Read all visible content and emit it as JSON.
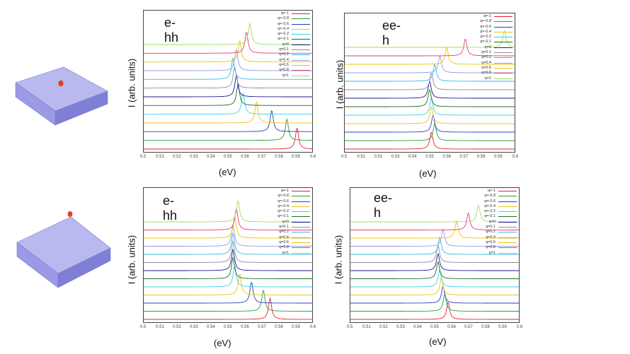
{
  "colors": {
    "series": [
      "#e0232b",
      "#2a9d3a",
      "#2f3cbb",
      "#ecc21a",
      "#36d4e6",
      "#1f6b2a",
      "#1b1b8f",
      "#8c8ca0",
      "#35b7e6",
      "#9a9ad8",
      "#f0c200",
      "#e23c7a",
      "#9be05e"
    ],
    "slab_top": "#b5b5ee",
    "slab_side": "#8686d8",
    "dot": "#e0421f"
  },
  "charts": [
    {
      "title": "e-hh",
      "ylabel": "I (arb. units)",
      "xlabel": "(eV)"
    },
    {
      "title": "ee-h",
      "ylabel": "I (arb. units)",
      "xlabel": "(eV)"
    },
    {
      "title": "e-hh",
      "ylabel": "I (arb. units)",
      "xlabel": "(eV)"
    },
    {
      "title": "ee-h",
      "ylabel": "I (arb. units)",
      "xlabel": "(eV)"
    }
  ],
  "chart_data": [
    {
      "type": "line",
      "title": "e-hh",
      "xlabel": "(eV)",
      "ylabel": "I (arb. units)",
      "xlim": [
        0.5,
        0.6
      ],
      "xticks": [
        "0.5",
        "0.51",
        "0.52",
        "0.53",
        "0.54",
        "0.55",
        "0.56",
        "0.57",
        "0.58",
        "0.59",
        "0.6"
      ],
      "legend": "top-right",
      "series": [
        {
          "name": "q=-1",
          "peak": 0.591
        },
        {
          "name": "q=-0.8",
          "peak": 0.585
        },
        {
          "name": "q=-0.6",
          "peak": 0.576
        },
        {
          "name": "q=-0.4",
          "peak": 0.567
        },
        {
          "name": "q=-0.2",
          "peak": 0.559
        },
        {
          "name": "q=-0.1",
          "peak": 0.556
        },
        {
          "name": "q=0",
          "peak": 0.555
        },
        {
          "name": "q=0.1",
          "peak": 0.554
        },
        {
          "name": "q=0.2",
          "peak": 0.553
        },
        {
          "name": "q=0.4",
          "peak": 0.555
        },
        {
          "name": "q=0.6",
          "peak": 0.557
        },
        {
          "name": "q=0.8",
          "peak": 0.561
        },
        {
          "name": "q=1",
          "peak": 0.563
        }
      ]
    },
    {
      "type": "line",
      "title": "ee-h",
      "xlabel": "(eV)",
      "ylabel": "I (arb. units)",
      "xlim": [
        0.5,
        0.6
      ],
      "xticks": [
        "0.5",
        "0.51",
        "0.52",
        "0.53",
        "0.54",
        "0.55",
        "0.56",
        "0.57",
        "0.58",
        "0.59",
        "0.6"
      ],
      "legend": "top-right",
      "series": [
        {
          "name": "q=-1",
          "peak": 0.551
        },
        {
          "name": "q=-0.8",
          "peak": 0.553
        },
        {
          "name": "q=-0.6",
          "peak": 0.552
        },
        {
          "name": "q=-0.4",
          "peak": 0.551
        },
        {
          "name": "q=-0.2",
          "peak": 0.551
        },
        {
          "name": "q=-0.1",
          "peak": 0.55
        },
        {
          "name": "q=0",
          "peak": 0.55
        },
        {
          "name": "q=0.1",
          "peak": 0.551
        },
        {
          "name": "q=0.2",
          "peak": 0.553
        },
        {
          "name": "q=0.4",
          "peak": 0.556
        },
        {
          "name": "q=0.6",
          "peak": 0.56
        },
        {
          "name": "q=0.8",
          "peak": 0.571
        },
        {
          "name": "q=1",
          "peak": 0.594
        }
      ]
    },
    {
      "type": "line",
      "title": "e-hh",
      "xlabel": "(eV)",
      "ylabel": "I (arb. units)",
      "xlim": [
        0.5,
        0.6
      ],
      "xticks": [
        "0.5",
        "0.51",
        "0.52",
        "0.53",
        "0.54",
        "0.55",
        "0.56",
        "0.57",
        "0.58",
        "0.59",
        "0.6"
      ],
      "legend": "top-right",
      "series": [
        {
          "name": "q=-1",
          "peak": 0.575
        },
        {
          "name": "q=-0.8",
          "peak": 0.571
        },
        {
          "name": "q=-0.6",
          "peak": 0.564
        },
        {
          "name": "q=-0.4",
          "peak": 0.557
        },
        {
          "name": "q=-0.2",
          "peak": 0.554
        },
        {
          "name": "q=-0.1",
          "peak": 0.553
        },
        {
          "name": "q=0",
          "peak": 0.553
        },
        {
          "name": "q=0.1",
          "peak": 0.553
        },
        {
          "name": "q=0.2",
          "peak": 0.553
        },
        {
          "name": "q=0.4",
          "peak": 0.553
        },
        {
          "name": "q=0.6",
          "peak": 0.554
        },
        {
          "name": "q=0.8",
          "peak": 0.555
        },
        {
          "name": "q=1",
          "peak": 0.556
        }
      ]
    },
    {
      "type": "line",
      "title": "ee-h",
      "xlabel": "(eV)",
      "ylabel": "I (arb. units)",
      "xlim": [
        0.5,
        0.6
      ],
      "xticks": [
        "0.5",
        "0.51",
        "0.52",
        "0.53",
        "0.54",
        "0.55",
        "0.56",
        "0.57",
        "0.58",
        "0.59",
        "0.6"
      ],
      "legend": "top-right",
      "series": [
        {
          "name": "q=-1",
          "peak": 0.558
        },
        {
          "name": "q=-0.8",
          "peak": 0.556
        },
        {
          "name": "q=-0.6",
          "peak": 0.555
        },
        {
          "name": "q=-0.4",
          "peak": 0.554
        },
        {
          "name": "q=-0.2",
          "peak": 0.553
        },
        {
          "name": "q=-0.1",
          "peak": 0.552
        },
        {
          "name": "q=0",
          "peak": 0.552
        },
        {
          "name": "q=0.1",
          "peak": 0.552
        },
        {
          "name": "q=0.2",
          "peak": 0.553
        },
        {
          "name": "q=0.4",
          "peak": 0.555
        },
        {
          "name": "q=0.6",
          "peak": 0.563
        },
        {
          "name": "q=0.8",
          "peak": 0.57
        },
        {
          "name": "q=1",
          "peak": 0.576
        }
      ]
    }
  ]
}
